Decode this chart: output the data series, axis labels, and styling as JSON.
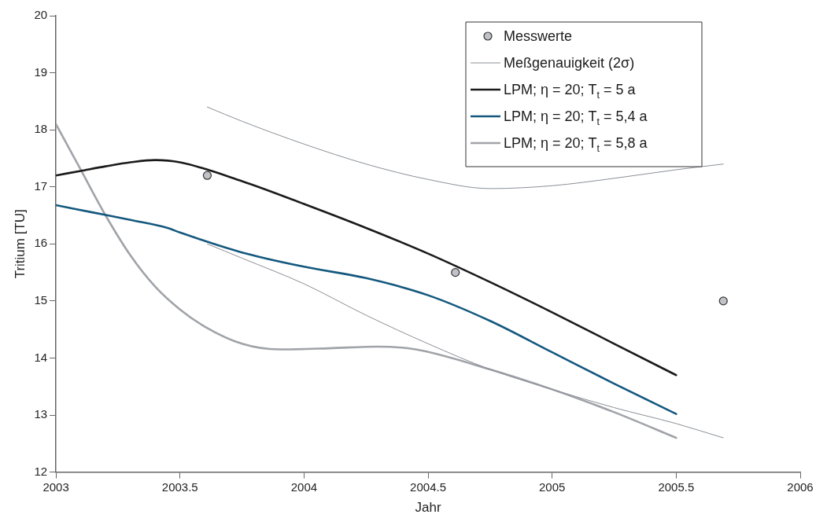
{
  "chart_data": {
    "type": "line",
    "xlabel": "Jahr",
    "ylabel": "Tritium [TU]",
    "xlim": [
      2003,
      2006
    ],
    "xticks": [
      2003,
      2003.5,
      2004,
      2004.5,
      2005,
      2005.5,
      2006
    ],
    "ylim": [
      12,
      20
    ],
    "yticks": [
      12,
      13,
      14,
      15,
      16,
      17,
      18,
      19,
      20
    ],
    "grid": false,
    "legend": "top right",
    "series": [
      {
        "name": "Messwerte",
        "type": "scatter",
        "marker": "circle",
        "color": "#c0c2c8",
        "x": [
          2003.61,
          2004.61,
          2005.69
        ],
        "values": [
          17.2,
          15.5,
          15.0
        ]
      },
      {
        "name": "Meßgenauigkeit (2σ)",
        "color": "#8a8f96",
        "x": [
          2003.61,
          2003.75,
          2004,
          2004.25,
          2004.5,
          2004.75,
          2005,
          2005.25,
          2005.5,
          2005.69
        ],
        "values": [
          18.4,
          18.15,
          17.75,
          17.4,
          17.13,
          16.97,
          17.02,
          17.15,
          17.3,
          17.4
        ]
      },
      {
        "color": "#8a8f96",
        "x": [
          2003.61,
          2003.75,
          2004,
          2004.25,
          2004.5,
          2004.75,
          2005,
          2005.25,
          2005.5,
          2005.69
        ],
        "values": [
          16.0,
          15.75,
          15.3,
          14.75,
          14.25,
          13.8,
          13.45,
          13.13,
          12.85,
          12.6
        ]
      },
      {
        "name": "LPM; η = 20; T$_{t}$ = 5 a",
        "color": "#1a1a1a",
        "x": [
          2003,
          2003.1,
          2003.2,
          2003.3,
          2003.4,
          2003.5,
          2003.75,
          2004,
          2004.25,
          2004.5,
          2004.75,
          2005,
          2005.25,
          2005.5
        ],
        "values": [
          17.2,
          17.28,
          17.36,
          17.43,
          17.47,
          17.43,
          17.1,
          16.7,
          16.28,
          15.83,
          15.33,
          14.8,
          14.25,
          13.7
        ]
      },
      {
        "name": "LPM; η = 20; T$_{t}$ = 5,4 a",
        "color": "#14587e",
        "x": [
          2003,
          2003.15,
          2003.3,
          2003.45,
          2003.5,
          2003.75,
          2004,
          2004.25,
          2004.5,
          2004.75,
          2005,
          2005.25,
          2005.5
        ],
        "values": [
          16.68,
          16.55,
          16.42,
          16.28,
          16.2,
          15.85,
          15.6,
          15.4,
          15.1,
          14.65,
          14.1,
          13.55,
          13.02
        ]
      },
      {
        "name": "LPM; η = 20; T$_{t}$ = 5,8 a",
        "color": "#a0a3a8",
        "x": [
          2003,
          2003.1,
          2003.2,
          2003.3,
          2003.4,
          2003.5,
          2003.6,
          2003.75,
          2003.9,
          2004.1,
          2004.3,
          2004.45,
          2004.75,
          2005,
          2005.25,
          2005.5
        ],
        "values": [
          18.1,
          17.3,
          16.5,
          15.8,
          15.25,
          14.85,
          14.55,
          14.25,
          14.15,
          14.17,
          14.2,
          14.15,
          13.8,
          13.45,
          13.05,
          12.6
        ]
      }
    ]
  }
}
